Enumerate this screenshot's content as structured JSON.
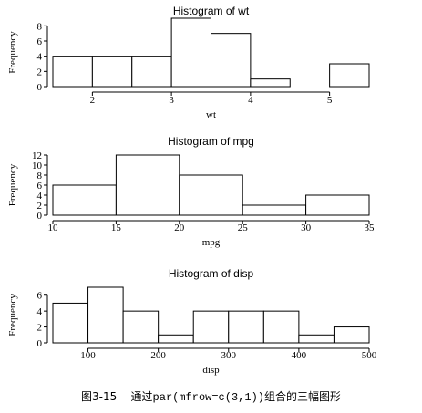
{
  "caption": {
    "figure_label": "图3-15",
    "text_before": "通过",
    "code": "par(mfrow=c(3,1))",
    "text_after": "组合的三幅图形"
  },
  "chart_data": [
    {
      "type": "bar",
      "title": "Histogram of wt",
      "xlabel": "wt",
      "ylabel": "Frequency",
      "bins": [
        [
          1.5,
          2.0
        ],
        [
          2.0,
          2.5
        ],
        [
          2.5,
          3.0
        ],
        [
          3.0,
          3.5
        ],
        [
          3.5,
          4.0
        ],
        [
          4.0,
          4.5
        ],
        [
          4.5,
          5.0
        ],
        [
          5.0,
          5.5
        ]
      ],
      "values": [
        4,
        4,
        4,
        9,
        7,
        1,
        0,
        3
      ],
      "xticks": [
        2,
        3,
        4,
        5
      ],
      "yticks": [
        0,
        2,
        4,
        6,
        8
      ],
      "xlim": [
        1.5,
        5.5
      ],
      "ylim": [
        0,
        9
      ],
      "grid": false
    },
    {
      "type": "bar",
      "title": "Histogram of mpg",
      "xlabel": "mpg",
      "ylabel": "Frequency",
      "bins": [
        [
          10,
          15
        ],
        [
          15,
          20
        ],
        [
          20,
          25
        ],
        [
          25,
          30
        ],
        [
          30,
          35
        ]
      ],
      "values": [
        6,
        12,
        8,
        2,
        4
      ],
      "xticks": [
        10,
        15,
        20,
        25,
        30,
        35
      ],
      "yticks": [
        0,
        2,
        4,
        6,
        8,
        10,
        12
      ],
      "xlim": [
        10,
        35
      ],
      "ylim": [
        0,
        12
      ],
      "grid": false
    },
    {
      "type": "bar",
      "title": "Histogram of disp",
      "xlabel": "disp",
      "ylabel": "Frequency",
      "bins": [
        [
          50,
          100
        ],
        [
          100,
          150
        ],
        [
          150,
          200
        ],
        [
          200,
          250
        ],
        [
          250,
          300
        ],
        [
          300,
          350
        ],
        [
          350,
          400
        ],
        [
          400,
          450
        ],
        [
          450,
          500
        ]
      ],
      "values": [
        5,
        7,
        4,
        1,
        4,
        4,
        4,
        1,
        2
      ],
      "xticks": [
        100,
        200,
        300,
        400,
        500
      ],
      "yticks": [
        0,
        2,
        4,
        6
      ],
      "xlim": [
        50,
        500
      ],
      "ylim": [
        0,
        7
      ],
      "grid": false
    }
  ]
}
